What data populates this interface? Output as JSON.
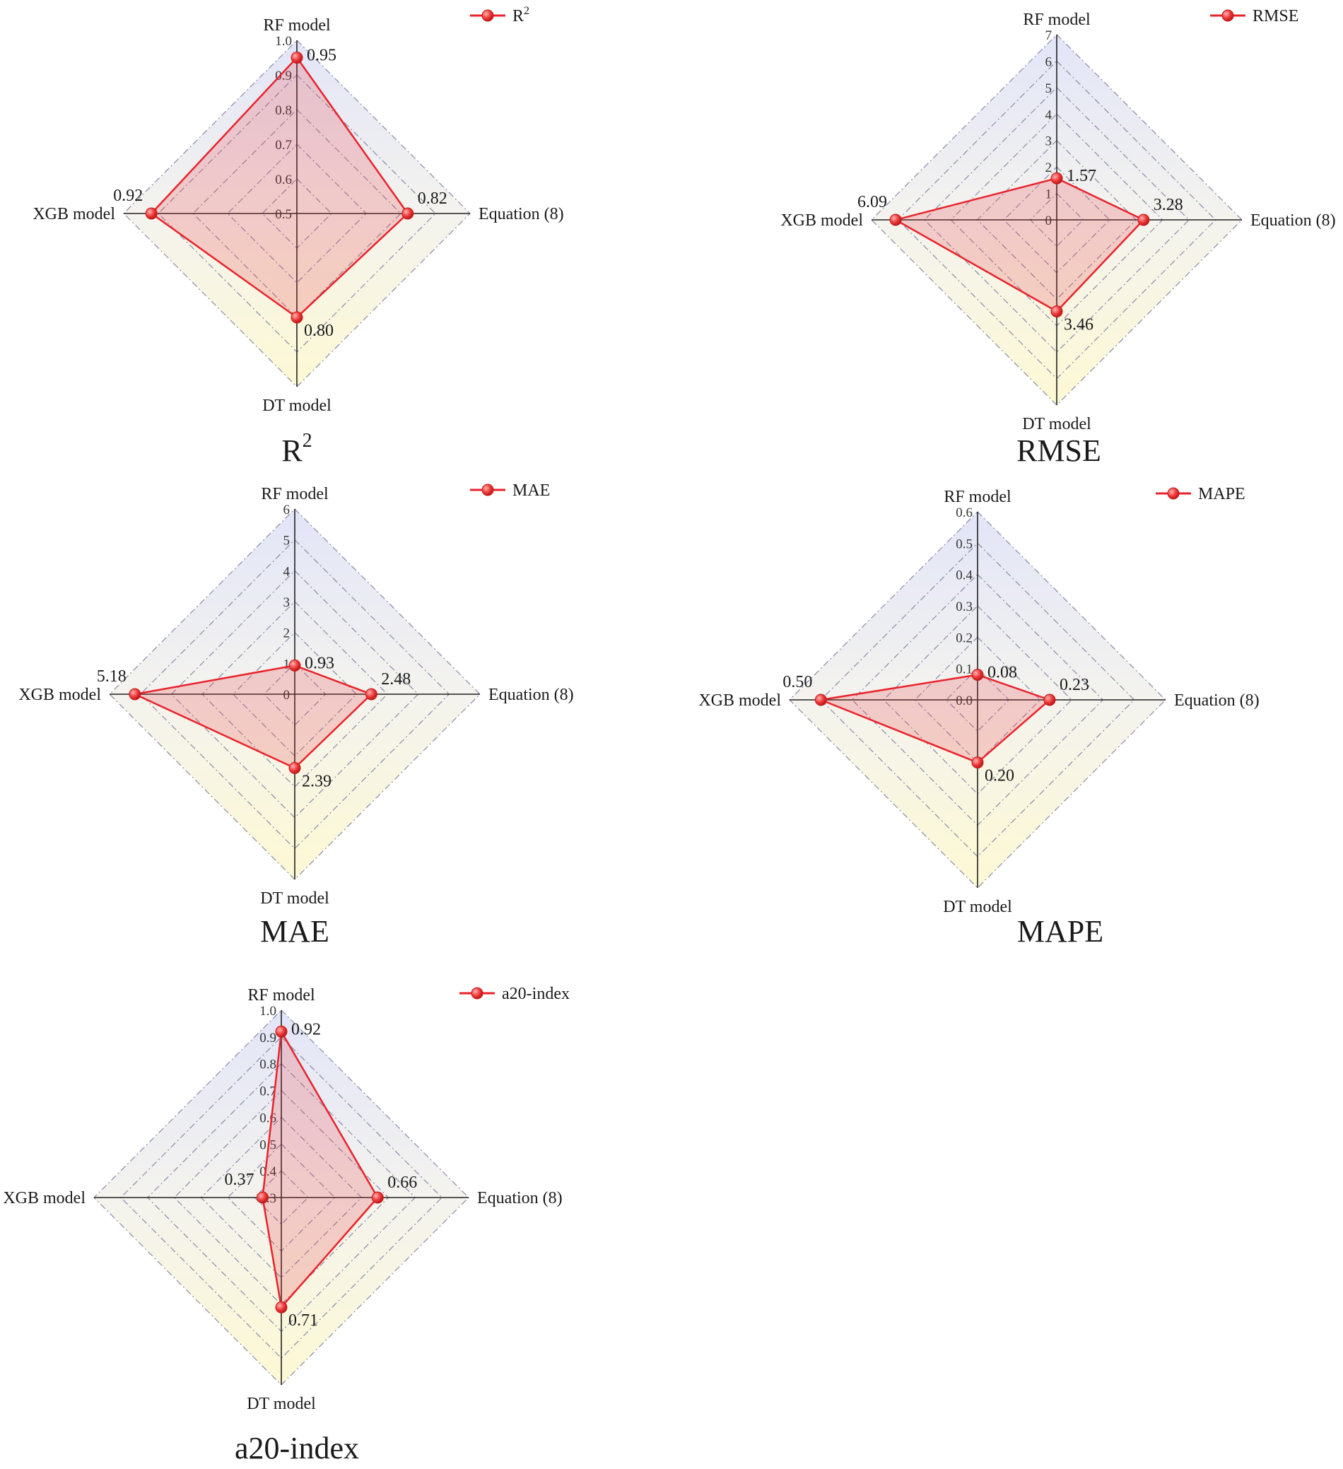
{
  "chart_data": [
    {
      "type": "radar",
      "caption": "R",
      "caption_sup": "2",
      "legend": {
        "label": "R",
        "sup": "2",
        "placement": "top-right"
      },
      "axes": [
        "RF model",
        "Equation (8)",
        "DT model",
        "XGB model"
      ],
      "values": [
        0.95,
        0.82,
        0.8,
        0.92
      ],
      "value_labels": [
        "0.95",
        "0.82",
        "0.80",
        "0.92"
      ],
      "range": [
        0.5,
        1.0
      ],
      "ticks": [
        "0.5",
        "0.6",
        "0.7",
        "0.8",
        "0.9",
        "1.0"
      ],
      "grid": true
    },
    {
      "type": "radar",
      "caption": "RMSE",
      "caption_sup": "",
      "legend": {
        "label": "RMSE",
        "sup": "",
        "placement": "top-right"
      },
      "axes": [
        "RF model",
        "Equation (8)",
        "DT model",
        "XGB model"
      ],
      "values": [
        1.57,
        3.28,
        3.46,
        6.09
      ],
      "value_labels": [
        "1.57",
        "3.28",
        "3.46",
        "6.09"
      ],
      "range": [
        0,
        7
      ],
      "ticks": [
        "0",
        "1",
        "2",
        "3",
        "4",
        "5",
        "6",
        "7"
      ],
      "grid": true
    },
    {
      "type": "radar",
      "caption": "MAE",
      "caption_sup": "",
      "legend": {
        "label": "MAE",
        "sup": "",
        "placement": "top-right"
      },
      "axes": [
        "RF model",
        "Equation (8)",
        "DT model",
        "XGB model"
      ],
      "values": [
        0.93,
        2.48,
        2.39,
        5.18
      ],
      "value_labels": [
        "0.93",
        "2.48",
        "2.39",
        "5.18"
      ],
      "range": [
        0,
        6
      ],
      "ticks": [
        "0",
        "1",
        "2",
        "3",
        "4",
        "5",
        "6"
      ],
      "grid": true
    },
    {
      "type": "radar",
      "caption": "MAPE",
      "caption_sup": "",
      "legend": {
        "label": "MAPE",
        "sup": "",
        "placement": "top-right"
      },
      "axes": [
        "RF model",
        "Equation (8)",
        "DT model",
        "XGB model"
      ],
      "values": [
        0.08,
        0.23,
        0.2,
        0.5
      ],
      "value_labels": [
        "0.08",
        "0.23",
        "0.20",
        "0.50"
      ],
      "range": [
        0.0,
        0.6
      ],
      "ticks": [
        "0.0",
        "0.1",
        "0.2",
        "0.3",
        "0.4",
        "0.5",
        "0.6"
      ],
      "grid": true
    },
    {
      "type": "radar",
      "caption": "a20-index",
      "caption_sup": "",
      "legend": {
        "label": "a20-index",
        "sup": "",
        "placement": "top-right"
      },
      "axes": [
        "RF model",
        "Equation (8)",
        "DT model",
        "XGB model"
      ],
      "values": [
        0.92,
        0.66,
        0.71,
        0.37
      ],
      "value_labels": [
        "0.92",
        "0.66",
        "0.71",
        "0.37"
      ],
      "range": [
        0.3,
        1.0
      ],
      "ticks": [
        "0.3",
        "0.4",
        "0.5",
        "0.6",
        "0.7",
        "0.8",
        "0.9",
        "1.0"
      ],
      "grid": true
    }
  ],
  "colors": {
    "series": "#e8232b",
    "fill": "rgba(232,60,70,0.22)",
    "grid": "#8a8aa8",
    "axis": "#222222",
    "bg_top": "#e3e6f7",
    "bg_bottom": "#fbf8d6"
  }
}
